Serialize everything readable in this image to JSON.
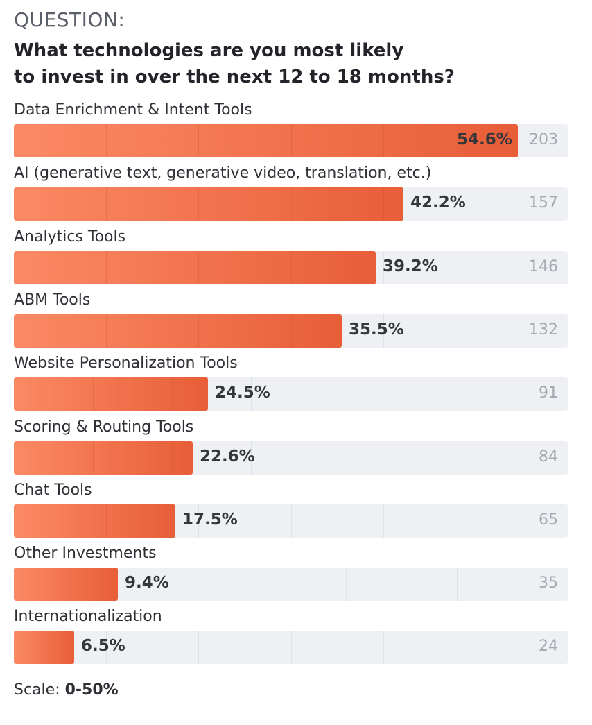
{
  "header": {
    "kicker": "QUESTION:",
    "title_line1": "What technologies are you most likely",
    "title_line2": "to invest in over the next 12 to 18 months?"
  },
  "chart_data": {
    "type": "bar",
    "orientation": "horizontal",
    "categories": [
      "Data Enrichment & Intent Tools",
      "AI (generative text, generative video, translation, etc.)",
      "Analytics Tools",
      "ABM Tools",
      "Website Personalization Tools",
      "Scoring & Routing Tools",
      "Chat Tools",
      "Other Investments",
      "Internationalization"
    ],
    "values": [
      54.6,
      42.2,
      39.2,
      35.5,
      24.5,
      22.6,
      17.5,
      9.4,
      6.5
    ],
    "value_labels": [
      "54.6%",
      "42.2%",
      "39.2%",
      "35.5%",
      "24.5%",
      "22.6%",
      "17.5%",
      "9.4%",
      "6.5%"
    ],
    "counts": [
      "203",
      "157",
      "146",
      "132",
      "91",
      "84",
      "65",
      "35",
      "24"
    ],
    "scale_max_per_row": [
      60,
      60,
      60,
      60,
      70,
      70,
      60,
      50,
      60
    ],
    "colors": {
      "bar_start": "#fb8a64",
      "bar_end": "#e75e38",
      "track": "#eef0f4"
    }
  },
  "footer": {
    "scale_label": "Scale:",
    "scale_value": "0-50%"
  }
}
